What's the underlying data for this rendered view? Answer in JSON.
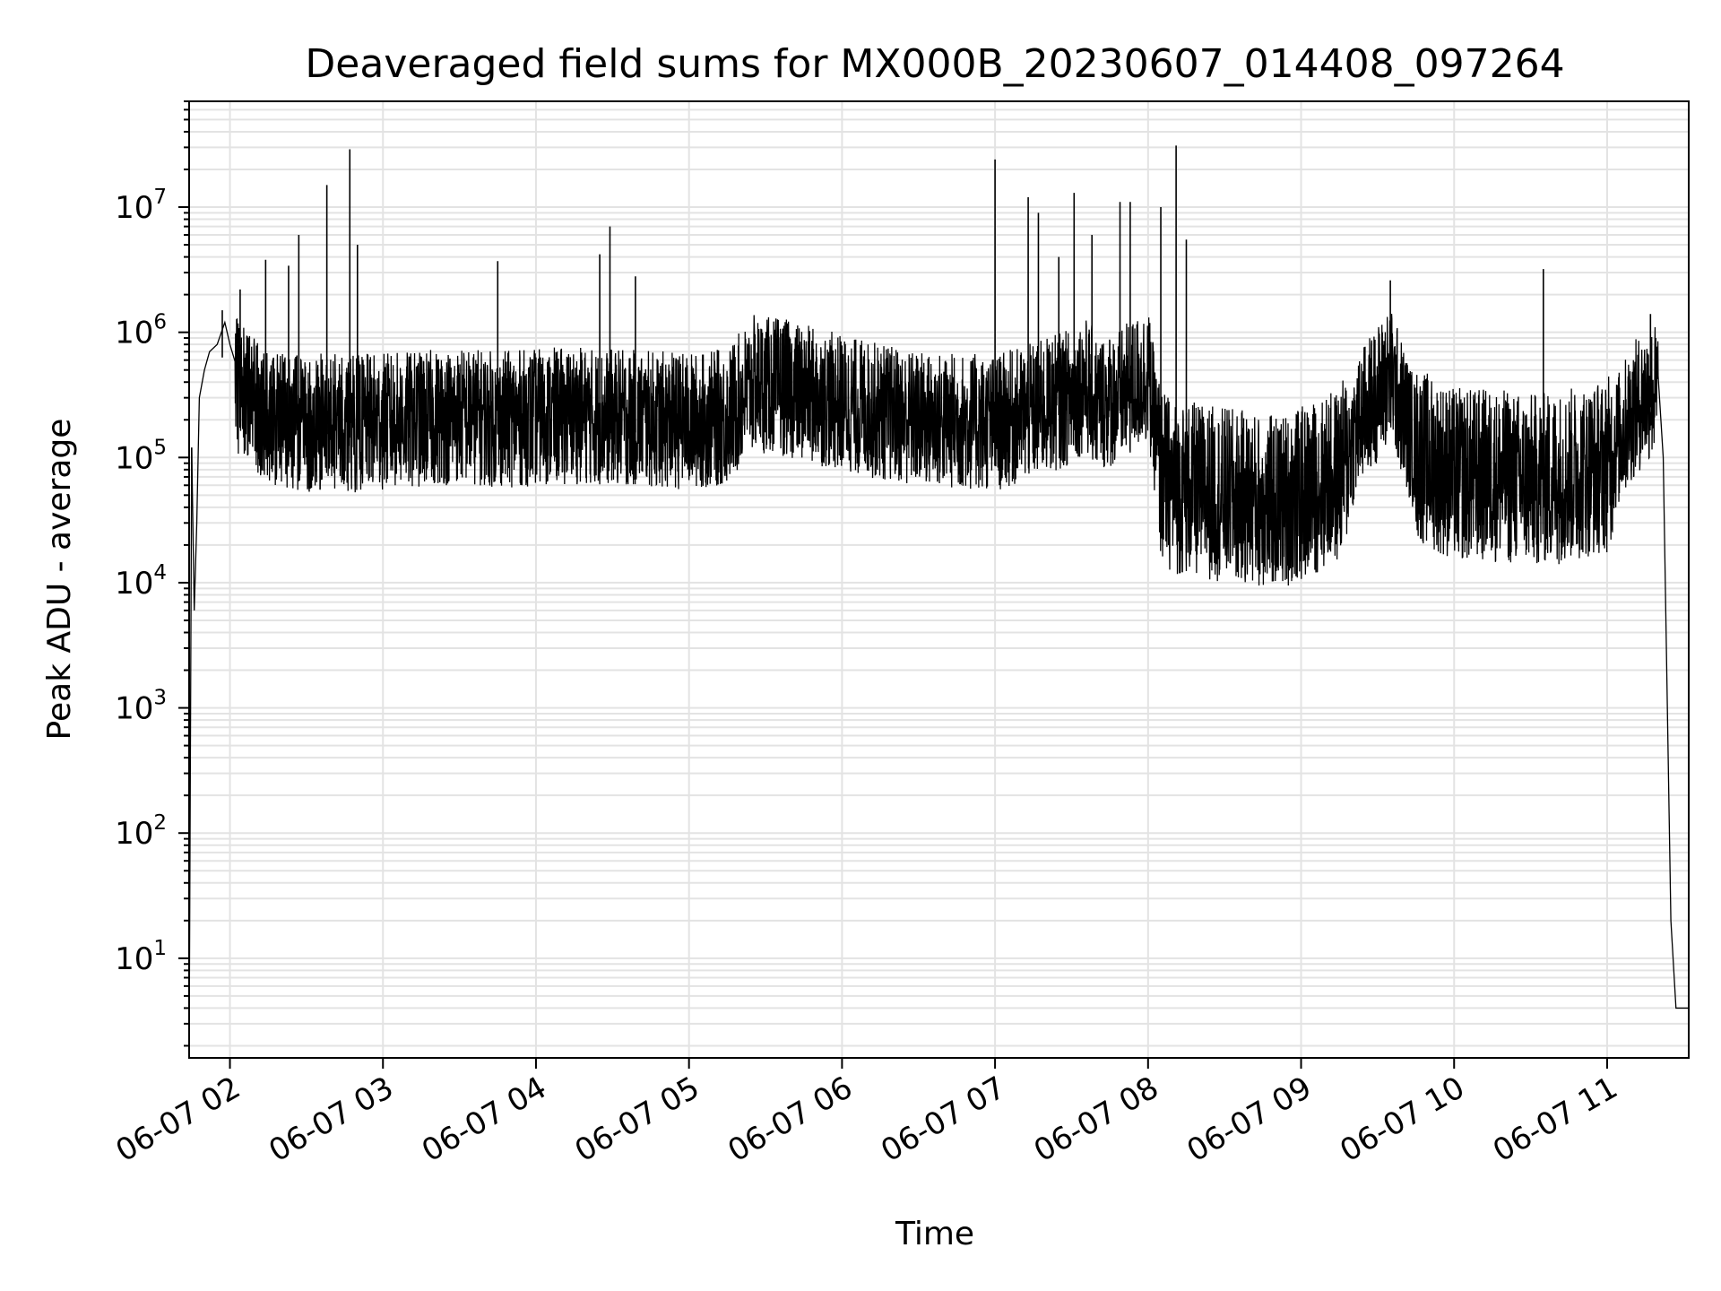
{
  "chart_data": {
    "type": "line",
    "title": "Deaveraged field sums for MX000B_20230607_014408_097264",
    "xlabel": "Time",
    "ylabel": "Peak ADU - average",
    "x_axis": {
      "kind": "time",
      "xlim": [
        "2023-06-07T01:44:00",
        "2023-06-07T11:32:00"
      ],
      "ticks": [
        {
          "at": "2023-06-07T02:00",
          "label": "06-07 02"
        },
        {
          "at": "2023-06-07T03:00",
          "label": "06-07 03"
        },
        {
          "at": "2023-06-07T04:00",
          "label": "06-07 04"
        },
        {
          "at": "2023-06-07T05:00",
          "label": "06-07 05"
        },
        {
          "at": "2023-06-07T06:00",
          "label": "06-07 06"
        },
        {
          "at": "2023-06-07T07:00",
          "label": "06-07 07"
        },
        {
          "at": "2023-06-07T08:00",
          "label": "06-07 08"
        },
        {
          "at": "2023-06-07T09:00",
          "label": "06-07 09"
        },
        {
          "at": "2023-06-07T10:00",
          "label": "06-07 10"
        },
        {
          "at": "2023-06-07T11:00",
          "label": "06-07 11"
        }
      ],
      "tick_rotation": 30
    },
    "y_axis": {
      "scale": "log",
      "ylim": [
        1.6,
        70000000
      ],
      "ticks": [
        {
          "value": 10,
          "base": "10",
          "exp": "1"
        },
        {
          "value": 100,
          "base": "10",
          "exp": "2"
        },
        {
          "value": 1000,
          "base": "10",
          "exp": "3"
        },
        {
          "value": 10000,
          "base": "10",
          "exp": "4"
        },
        {
          "value": 100000,
          "base": "10",
          "exp": "5"
        },
        {
          "value": 1000000,
          "base": "10",
          "exp": "6"
        },
        {
          "value": 10000000,
          "base": "10",
          "exp": "7"
        }
      ]
    },
    "grid": true,
    "line_color": "#000000",
    "grid_color": "#e3e3e3",
    "series": [
      {
        "x": [
          "2023-06-07T01:44:00",
          "2023-06-07T01:45:00",
          "2023-06-07T01:46:00",
          "2023-06-07T01:47:00",
          "2023-06-07T01:48:00",
          "2023-06-07T01:50:00",
          "2023-06-07T01:52:00",
          "2023-06-07T01:55:00",
          "2023-06-07T01:58:00",
          "2023-06-07T02:00:00",
          "2023-06-07T02:03:00",
          "2023-06-07T02:06:00",
          "2023-06-07T02:10:00",
          "2023-06-07T02:15:00",
          "2023-06-07T02:20:00",
          "2023-06-07T02:25:00",
          "2023-06-07T02:30:00",
          "2023-06-07T02:35:00",
          "2023-06-07T02:40:00",
          "2023-06-07T02:45:00",
          "2023-06-07T02:50:00",
          "2023-06-07T02:55:00",
          "2023-06-07T03:00:00",
          "2023-06-07T03:15:00",
          "2023-06-07T03:30:00",
          "2023-06-07T03:45:00",
          "2023-06-07T04:00:00",
          "2023-06-07T04:15:00",
          "2023-06-07T04:30:00",
          "2023-06-07T04:45:00",
          "2023-06-07T05:00:00",
          "2023-06-07T05:15:00",
          "2023-06-07T05:25:00",
          "2023-06-07T05:35:00",
          "2023-06-07T05:45:00",
          "2023-06-07T06:00:00",
          "2023-06-07T06:15:00",
          "2023-06-07T06:30:00",
          "2023-06-07T06:45:00",
          "2023-06-07T07:00:00",
          "2023-06-07T07:15:00",
          "2023-06-07T07:30:00",
          "2023-06-07T07:35:00",
          "2023-06-07T07:40:00",
          "2023-06-07T07:50:00",
          "2023-06-07T08:00:00",
          "2023-06-07T08:05:00",
          "2023-06-07T08:10:00",
          "2023-06-07T08:30:00",
          "2023-06-07T08:50:00",
          "2023-06-07T09:00:00",
          "2023-06-07T09:15:00",
          "2023-06-07T09:25:00",
          "2023-06-07T09:35:00",
          "2023-06-07T09:45:00",
          "2023-06-07T10:00:00",
          "2023-06-07T10:15:00",
          "2023-06-07T10:30:00",
          "2023-06-07T10:45:00",
          "2023-06-07T11:00:00",
          "2023-06-07T11:10:00",
          "2023-06-07T11:15:00",
          "2023-06-07T11:20:00",
          "2023-06-07T11:22:00",
          "2023-06-07T11:25:00",
          "2023-06-07T11:27:00",
          "2023-06-07T11:32:00"
        ],
        "y": [
          1.6,
          120000,
          6000,
          30000,
          300000,
          500000,
          700000,
          800000,
          1200000,
          800000,
          500000,
          400000,
          350000,
          300000,
          250000,
          250000,
          220000,
          250000,
          260000,
          240000,
          240000,
          250000,
          250000,
          260000,
          280000,
          260000,
          270000,
          280000,
          270000,
          260000,
          250000,
          270000,
          500000,
          480000,
          420000,
          350000,
          300000,
          260000,
          250000,
          240000,
          300000,
          400000,
          500000,
          350000,
          400000,
          600000,
          100000,
          80000,
          70000,
          60000,
          70000,
          100000,
          300000,
          600000,
          150000,
          100000,
          100000,
          90000,
          100000,
          120000,
          300000,
          400000,
          450000,
          100000,
          20,
          4,
          4
        ]
      }
    ],
    "spikes": [
      {
        "x": "2023-06-07T01:45:00",
        "y": 120000
      },
      {
        "x": "2023-06-07T01:57:00",
        "y": 1500000
      },
      {
        "x": "2023-06-07T02:04:00",
        "y": 2200000
      },
      {
        "x": "2023-06-07T02:14:00",
        "y": 3800000
      },
      {
        "x": "2023-06-07T02:23:00",
        "y": 3400000
      },
      {
        "x": "2023-06-07T02:27:00",
        "y": 6000000
      },
      {
        "x": "2023-06-07T02:38:00",
        "y": 15000000
      },
      {
        "x": "2023-06-07T02:47:00",
        "y": 29000000
      },
      {
        "x": "2023-06-07T02:50:00",
        "y": 5000000
      },
      {
        "x": "2023-06-07T03:45:00",
        "y": 3700000
      },
      {
        "x": "2023-06-07T04:25:00",
        "y": 4200000
      },
      {
        "x": "2023-06-07T04:29:00",
        "y": 7000000
      },
      {
        "x": "2023-06-07T04:39:00",
        "y": 2800000
      },
      {
        "x": "2023-06-07T07:00:00",
        "y": 24000000
      },
      {
        "x": "2023-06-07T07:13:00",
        "y": 12000000
      },
      {
        "x": "2023-06-07T07:17:00",
        "y": 9000000
      },
      {
        "x": "2023-06-07T07:25:00",
        "y": 4000000
      },
      {
        "x": "2023-06-07T07:31:00",
        "y": 13000000
      },
      {
        "x": "2023-06-07T07:38:00",
        "y": 6000000
      },
      {
        "x": "2023-06-07T07:49:00",
        "y": 11000000
      },
      {
        "x": "2023-06-07T07:53:00",
        "y": 11000000
      },
      {
        "x": "2023-06-07T08:05:00",
        "y": 10000000
      },
      {
        "x": "2023-06-07T08:11:00",
        "y": 31000000
      },
      {
        "x": "2023-06-07T08:15:00",
        "y": 5500000
      },
      {
        "x": "2023-06-07T09:35:00",
        "y": 2600000
      },
      {
        "x": "2023-06-07T10:35:00",
        "y": 3200000
      },
      {
        "x": "2023-06-07T11:17:00",
        "y": 1400000
      }
    ]
  }
}
